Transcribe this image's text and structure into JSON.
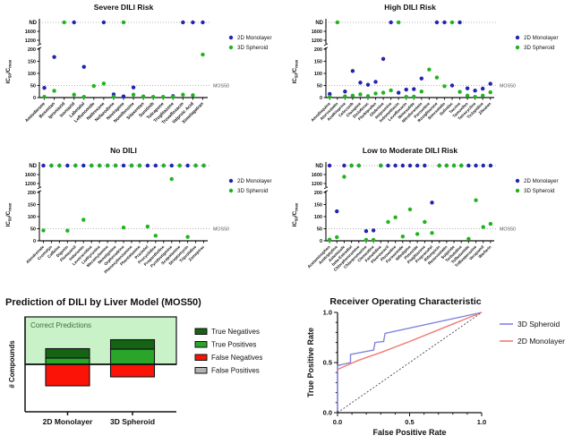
{
  "figure": {
    "colors": {
      "monolayer": "#2323b4",
      "spheroid": "#1fb41f",
      "roc_spheroid": "#8282dd",
      "roc_monolayer": "#ef7b72",
      "true_neg": "#156415",
      "true_pos": "#2aa52a",
      "false_neg": "#fb1307",
      "false_pos": "#b3b3b3",
      "correct_region": "#c9f2c9",
      "dotted_line": "#999999"
    },
    "y_axis": {
      "label": "IC50/Cmax",
      "label_segments": [
        {
          "t": "IC"
        },
        {
          "t": "50",
          "sub": true
        },
        {
          "t": "/C"
        },
        {
          "t": "max",
          "sub": true
        }
      ],
      "lower_ticks": [
        0,
        50,
        100,
        150,
        200
      ],
      "upper_ticks": [
        1200,
        1600
      ],
      "nd_label": "ND",
      "mos50_label": "MOS50"
    }
  },
  "chart_data": [
    {
      "type": "scatter",
      "title": "Severe DILI Risk",
      "ylabel": "IC50/Cmax",
      "threshold": {
        "label": "MOS50",
        "value": 50
      },
      "categories": [
        "Amiodarone",
        "Bosentan",
        "Iproniazid",
        "Isoniazid",
        "Labetalol",
        "Leflunomide",
        "Naltrexone",
        "Nefazodone",
        "Nevirapine",
        "Nomifensine",
        "Sitaxentan",
        "Sunitinib",
        "Tolcapone",
        "Troglitazone",
        "Trovafloxacin",
        "Valproic Acid",
        "Ximelagatran"
      ],
      "series": [
        {
          "name": "2D Monolayer",
          "color_key": "monolayer",
          "values": [
            40,
            168,
            null,
            "ND",
            127,
            null,
            "ND",
            13,
            5,
            42,
            null,
            null,
            null,
            6,
            "ND",
            "ND",
            "ND"
          ]
        },
        {
          "name": "3D Spheroid",
          "color_key": "spheroid",
          "values": [
            3,
            28,
            "ND",
            12,
            3,
            48,
            58,
            4,
            "ND",
            12,
            5,
            3,
            3,
            3,
            12,
            10,
            178
          ]
        }
      ]
    },
    {
      "type": "scatter",
      "title": "High DILI Risk",
      "ylabel": "IC50/Cmax",
      "threshold": {
        "label": "MOS50",
        "value": 50
      },
      "categories": [
        "Amodiaquine",
        "Atorvastatin",
        "Azathioprine",
        "Celecoxib",
        "Clozapine",
        "Diclofenac",
        "Flurbiprofen",
        "Glafenine",
        "Imipramine",
        "Indomethacin",
        "Levofloxacin",
        "Nimesulide",
        "Nitrofurantoin",
        "Paroxetine",
        "Rosiglitazone",
        "Simvastatin",
        "Sulindac",
        "Tacrine",
        "Tamoxifen",
        "Tetracycline",
        "Ticlopidine",
        "Zileuton"
      ],
      "series": [
        {
          "name": "2D Monolayer",
          "color_key": "monolayer",
          "values": [
            15,
            null,
            25,
            110,
            62,
            53,
            65,
            160,
            "ND",
            20,
            33,
            35,
            79,
            null,
            "ND",
            "ND",
            50,
            "ND",
            38,
            29,
            37,
            57
          ]
        },
        {
          "name": "3D Spheroid",
          "color_key": "spheroid",
          "values": [
            3,
            "ND",
            5,
            8,
            13,
            6,
            17,
            20,
            30,
            "ND",
            3,
            4,
            25,
            116,
            83,
            47,
            "ND",
            24,
            8,
            3,
            8,
            22
          ]
        }
      ]
    },
    {
      "type": "scatter",
      "title": "No DILI",
      "ylabel": "IC50/Cmax",
      "threshold": {
        "label": "MOS50",
        "value": 50
      },
      "categories": [
        "Alendronate",
        "Cromolyn",
        "Caffeine",
        "Digoxin",
        "Flumazenil",
        "Indoramin",
        "Levocarnitine",
        "Liothyronine",
        "Mecamylamine",
        "Neostigmine",
        "Orphenadrine",
        "Phenoxybenzamine",
        "Phentolamine",
        "Practolol",
        "Procyclidine",
        "Propantheline",
        "Pyridostigmine",
        "Scopolamine",
        "Streptomycin",
        "Triprolidine",
        "Zomepirac"
      ],
      "series": [
        {
          "name": "2D Monolayer",
          "color_key": "monolayer",
          "values": [
            "ND",
            "ND",
            "ND",
            "ND",
            "ND",
            "ND",
            "ND",
            "ND",
            "ND",
            "ND",
            "ND",
            "ND",
            "ND",
            "ND",
            "ND",
            "ND",
            "ND",
            "ND",
            "ND",
            "ND",
            "ND"
          ]
        },
        {
          "name": "3D Spheroid",
          "color_key": "spheroid",
          "values": [
            43,
            "ND",
            "ND",
            42,
            "ND",
            87,
            "ND",
            "ND",
            "ND",
            "ND",
            55,
            "ND",
            "ND",
            59,
            21,
            "ND",
            1400,
            "ND",
            16,
            "ND",
            "ND"
          ]
        }
      ]
    },
    {
      "type": "scatter",
      "title": "Low to Moderate DILI Risk",
      "ylabel": "IC50/Cmax",
      "threshold": {
        "label": "MOS50",
        "value": 50
      },
      "categories": [
        "Acetaminophen",
        "Amitriptyline",
        "Astemizole",
        "beta-Estradiol",
        "Chlorpheniramine",
        "Chlorpromazine",
        "Clemastine",
        "Famotidine",
        "Fluorouracil",
        "Fluoxetine",
        "Furosemide",
        "Nifedipine",
        "Pimozide",
        "Pioglitazone",
        "Propranolol",
        "Rifampicin",
        "Rosuvastatin",
        "Sulpiride",
        "Terbutaline",
        "Tolbutamide",
        "Trifluoperazine",
        "Verapamil",
        "Warfarin"
      ],
      "series": [
        {
          "name": "2D Monolayer",
          "color_key": "monolayer",
          "values": [
            "ND",
            122,
            "ND",
            "ND",
            "ND",
            40,
            43,
            "ND",
            "ND",
            "ND",
            "ND",
            "ND",
            "ND",
            "ND",
            158,
            "ND",
            "ND",
            "ND",
            "ND",
            "ND",
            "ND",
            "ND",
            "ND"
          ]
        },
        {
          "name": "3D Spheroid",
          "color_key": "spheroid",
          "values": [
            5,
            15,
            1500,
            "ND",
            "ND",
            4,
            4,
            "ND",
            78,
            97,
            18,
            130,
            28,
            78,
            32,
            "ND",
            "ND",
            "ND",
            "ND",
            8,
            168,
            57,
            70
          ]
        }
      ]
    },
    {
      "type": "bar",
      "title": "Prediction of DILI by Liver Model (MOS50)",
      "ylabel": "# Compounds",
      "region_label": "Correct Predictions",
      "categories": [
        "2D Monolayer",
        "3D Spheroid"
      ],
      "series": [
        {
          "name": "True Negatives",
          "color_key": "true_neg",
          "direction": "up",
          "values": [
            21,
            21
          ]
        },
        {
          "name": "True Positives",
          "color_key": "true_pos",
          "direction": "up",
          "values": [
            14,
            34
          ]
        },
        {
          "name": "False Negatives",
          "color_key": "false_neg",
          "direction": "down",
          "values": [
            48,
            28
          ]
        },
        {
          "name": "False Positives",
          "color_key": "false_pos",
          "direction": "down",
          "values": [
            0,
            0
          ]
        }
      ]
    },
    {
      "type": "line",
      "title": "Receiver Operating Characteristic",
      "xlabel": "False Positive Rate",
      "ylabel": "True Positive Rate",
      "xlim": [
        0,
        1
      ],
      "ylim": [
        0,
        1
      ],
      "tick_labels": [
        "0.0",
        "0.5",
        "1.0"
      ],
      "series": [
        {
          "name": "3D Spheroid",
          "color_key": "roc_spheroid",
          "points": [
            [
              0,
              0.02
            ],
            [
              0,
              0.47
            ],
            [
              0.09,
              0.5
            ],
            [
              0.09,
              0.58
            ],
            [
              0.25,
              0.625
            ],
            [
              0.26,
              0.7
            ],
            [
              0.32,
              0.71
            ],
            [
              0.33,
              0.79
            ],
            [
              1,
              1
            ]
          ]
        },
        {
          "name": "2D Monolayer",
          "color_key": "roc_monolayer",
          "points": [
            [
              0,
              0.43
            ],
            [
              0.06,
              0.47
            ],
            [
              0.15,
              0.525
            ],
            [
              0.3,
              0.6
            ],
            [
              0.5,
              0.71
            ],
            [
              0.75,
              0.855
            ],
            [
              1,
              1
            ]
          ]
        },
        {
          "name": "identity",
          "reference": true,
          "points": [
            [
              0,
              0
            ],
            [
              1,
              1
            ]
          ]
        }
      ]
    }
  ]
}
